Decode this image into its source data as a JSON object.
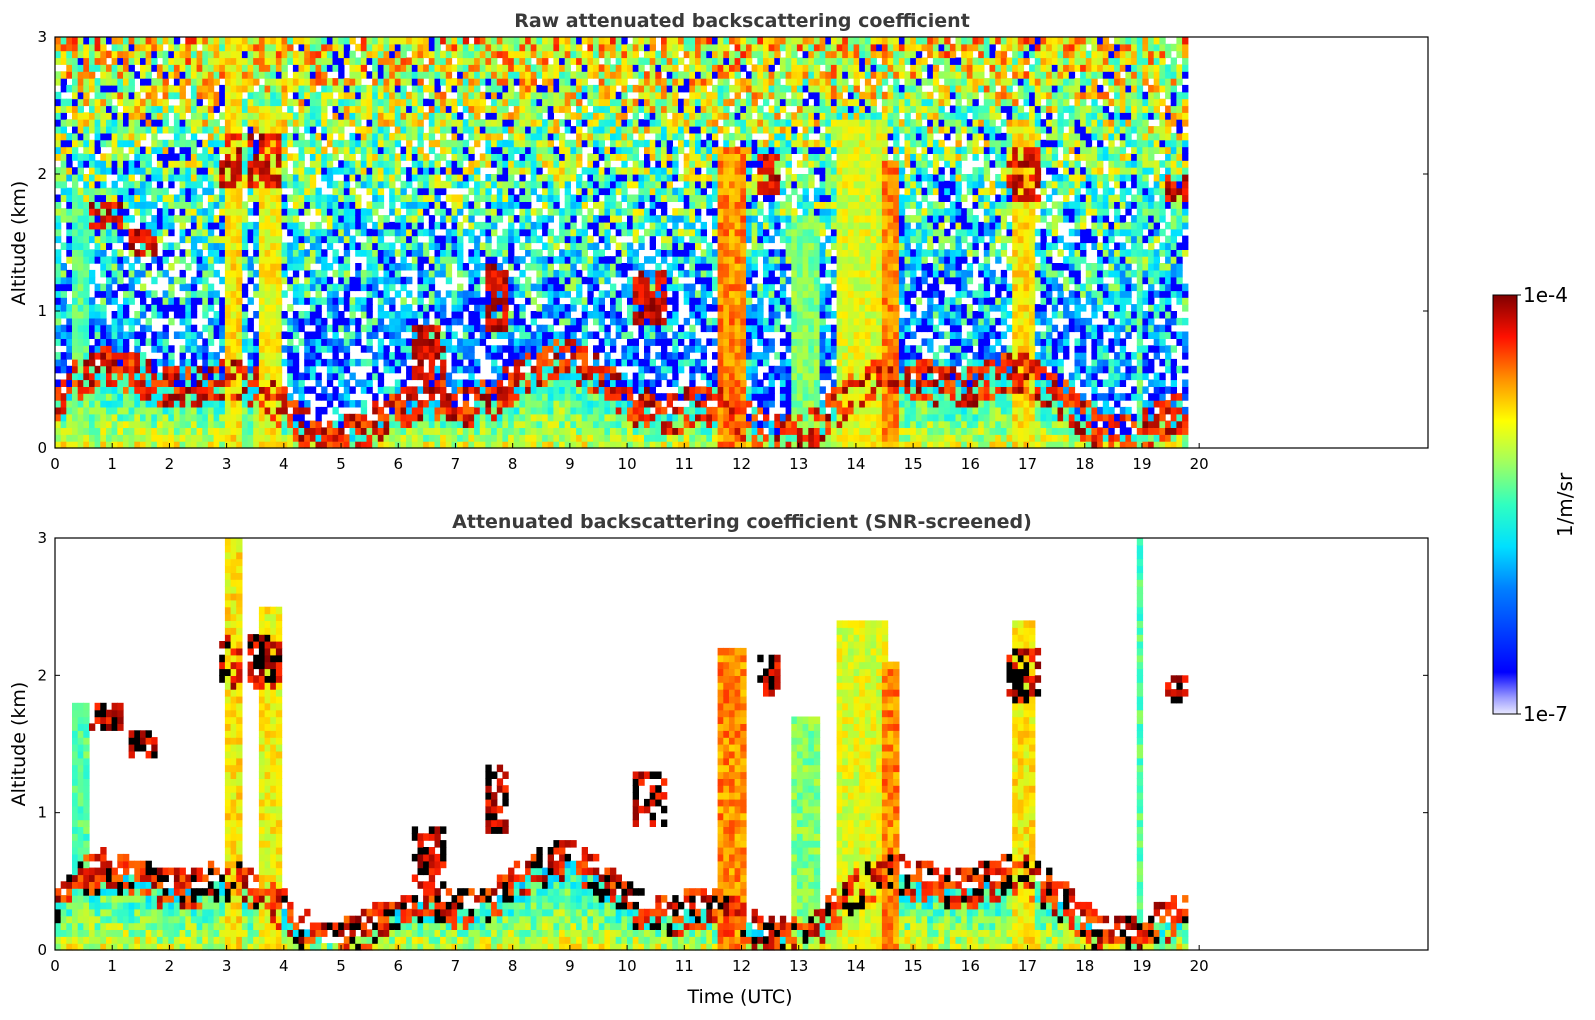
{
  "chart_data": [
    {
      "type": "heatmap",
      "title": "Raw attenuated backscattering coefficient",
      "xlabel": "",
      "ylabel": "Altitude (km)",
      "xlim": [
        0,
        24
      ],
      "ylim": [
        0,
        3
      ],
      "x_ticks": [
        "0",
        "1",
        "2",
        "3",
        "4",
        "5",
        "6",
        "7",
        "8",
        "9",
        "10",
        "11",
        "12",
        "13",
        "14",
        "15",
        "16",
        "17",
        "18",
        "19",
        "20"
      ],
      "y_ticks": [
        "0",
        "1",
        "2",
        "3"
      ],
      "data_extent_hours": [
        0,
        19.8
      ],
      "grid": false,
      "features": [
        {
          "kind": "boundary-layer aerosol",
          "x_range": [
            0,
            19.8
          ],
          "altitude_km": [
            0,
            0.6
          ]
        },
        {
          "kind": "precipitation / cloud column",
          "x_range": [
            2.9,
            3.3
          ],
          "altitude_km": [
            0,
            3
          ]
        },
        {
          "kind": "precipitation / cloud column",
          "x_range": [
            3.5,
            4.0
          ],
          "altitude_km": [
            0,
            2.5
          ]
        },
        {
          "kind": "precipitation / cloud column",
          "x_range": [
            11.5,
            12.2
          ],
          "altitude_km": [
            0,
            2.2
          ]
        },
        {
          "kind": "precipitation / cloud column",
          "x_range": [
            13.5,
            14.7
          ],
          "altitude_km": [
            0,
            2.5
          ]
        },
        {
          "kind": "precipitation / cloud column",
          "x_range": [
            16.7,
            17.2
          ],
          "altitude_km": [
            0,
            2.4
          ]
        },
        {
          "kind": "narrow column",
          "x_range": [
            18.9,
            19.0
          ],
          "altitude_km": [
            0,
            3
          ]
        }
      ]
    },
    {
      "type": "heatmap",
      "title": "Attenuated backscattering coefficient (SNR-screened)",
      "xlabel": "Time (UTC)",
      "ylabel": "Altitude (km)",
      "xlim": [
        0,
        24
      ],
      "ylim": [
        0,
        3
      ],
      "x_ticks": [
        "0",
        "1",
        "2",
        "3",
        "4",
        "5",
        "6",
        "7",
        "8",
        "9",
        "10",
        "11",
        "12",
        "13",
        "14",
        "15",
        "16",
        "17",
        "18",
        "19",
        "20"
      ],
      "y_ticks": [
        "0",
        "1",
        "2",
        "3"
      ],
      "data_extent_hours": [
        0,
        19.8
      ],
      "grid": false,
      "screening": "low-SNR pixels removed (white)"
    }
  ],
  "colorbar": {
    "label": "1/m/sr",
    "max_label": "1e-4",
    "min_label": "1e-7",
    "scale": "log",
    "range": [
      1e-07,
      0.0001
    ],
    "colormap": "jet"
  }
}
